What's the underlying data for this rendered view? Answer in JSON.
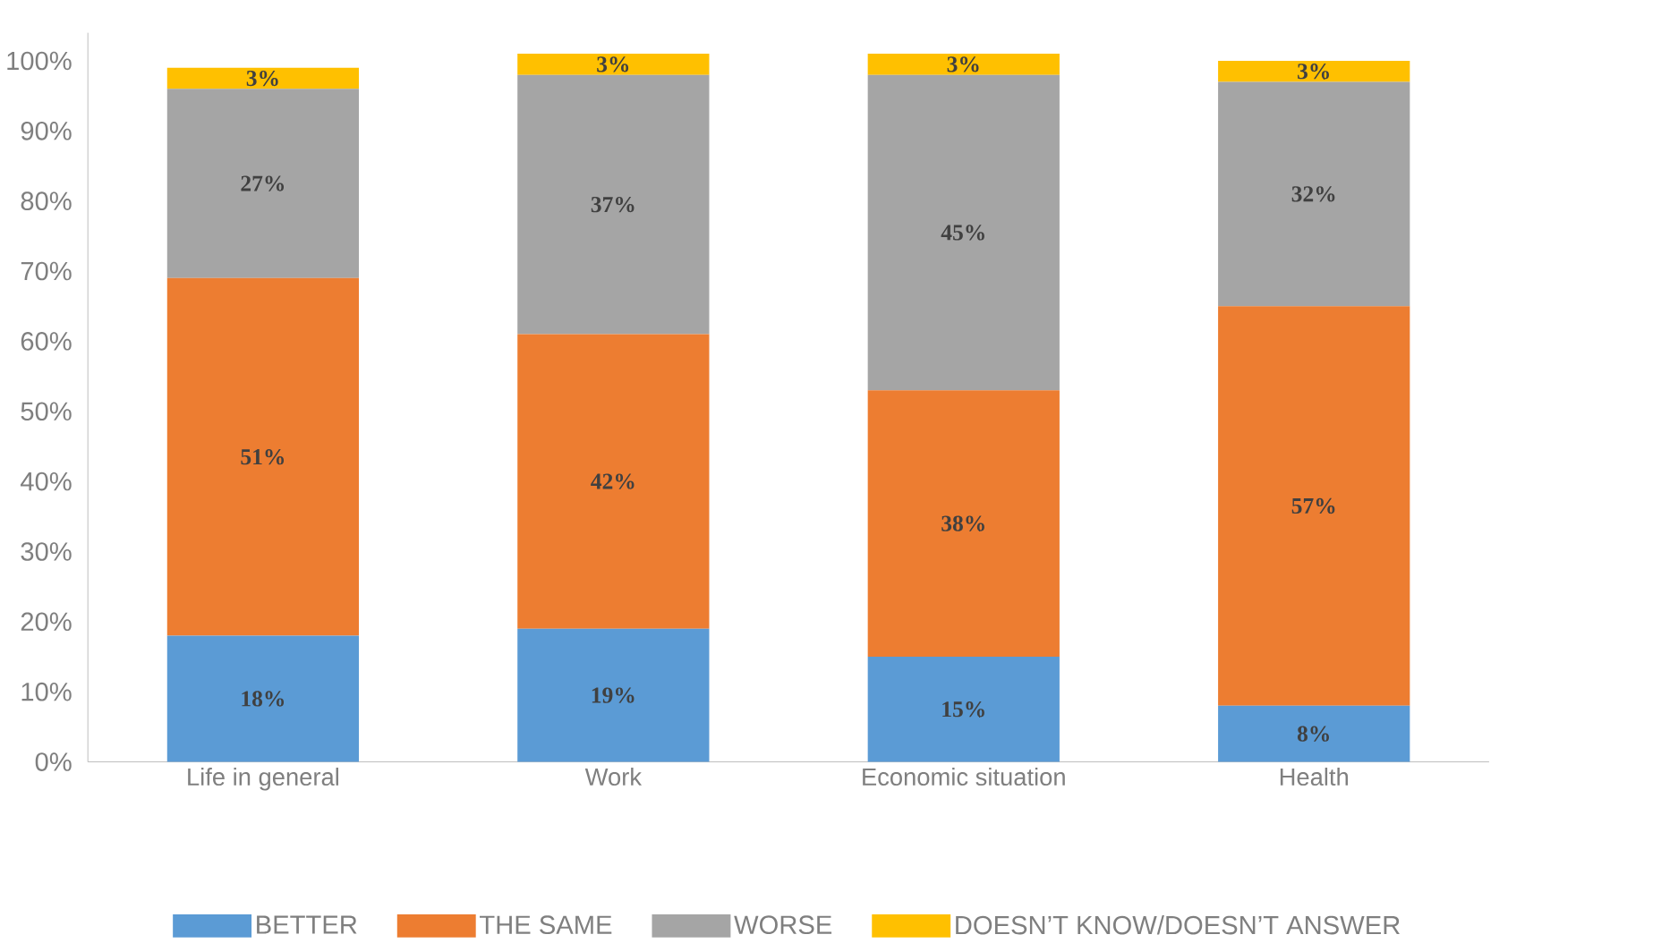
{
  "chart_data": {
    "type": "bar",
    "stacked": true,
    "legend": "bottom",
    "grid": false,
    "categories": [
      "Life in general",
      "Work",
      "Economic situation",
      "Health"
    ],
    "series": [
      {
        "name": "BETTER",
        "color": "#5b9bd5",
        "values": [
          18,
          19,
          15,
          8
        ],
        "value_labels": [
          "18%",
          "19%",
          "15%",
          "8%"
        ]
      },
      {
        "name": "THE SAME",
        "color": "#ed7d31",
        "values": [
          51,
          42,
          38,
          57
        ],
        "value_labels": [
          "51%",
          "42%",
          "38%",
          "57%"
        ]
      },
      {
        "name": "WORSE",
        "color": "#a5a5a5",
        "values": [
          27,
          37,
          45,
          32
        ],
        "value_labels": [
          "27%",
          "37%",
          "45%",
          "32%"
        ]
      },
      {
        "name": "DOESN’T KNOW/DOESN’T ANSWER",
        "color": "#ffc000",
        "values": [
          3,
          3,
          3,
          3
        ],
        "value_labels": [
          "3%",
          "3%",
          "3%",
          "3%"
        ]
      }
    ],
    "ylim": [
      0,
      104
    ],
    "yticks": [
      {
        "value": 0,
        "label": "0%"
      },
      {
        "value": 10,
        "label": "10%"
      },
      {
        "value": 20,
        "label": "20%"
      },
      {
        "value": 30,
        "label": "30%"
      },
      {
        "value": 40,
        "label": "40%"
      },
      {
        "value": 50,
        "label": "50%"
      },
      {
        "value": 60,
        "label": "60%"
      },
      {
        "value": 70,
        "label": "70%"
      },
      {
        "value": 80,
        "label": "80%"
      },
      {
        "value": 90,
        "label": "90%"
      },
      {
        "value": 100,
        "label": "100%"
      }
    ]
  }
}
